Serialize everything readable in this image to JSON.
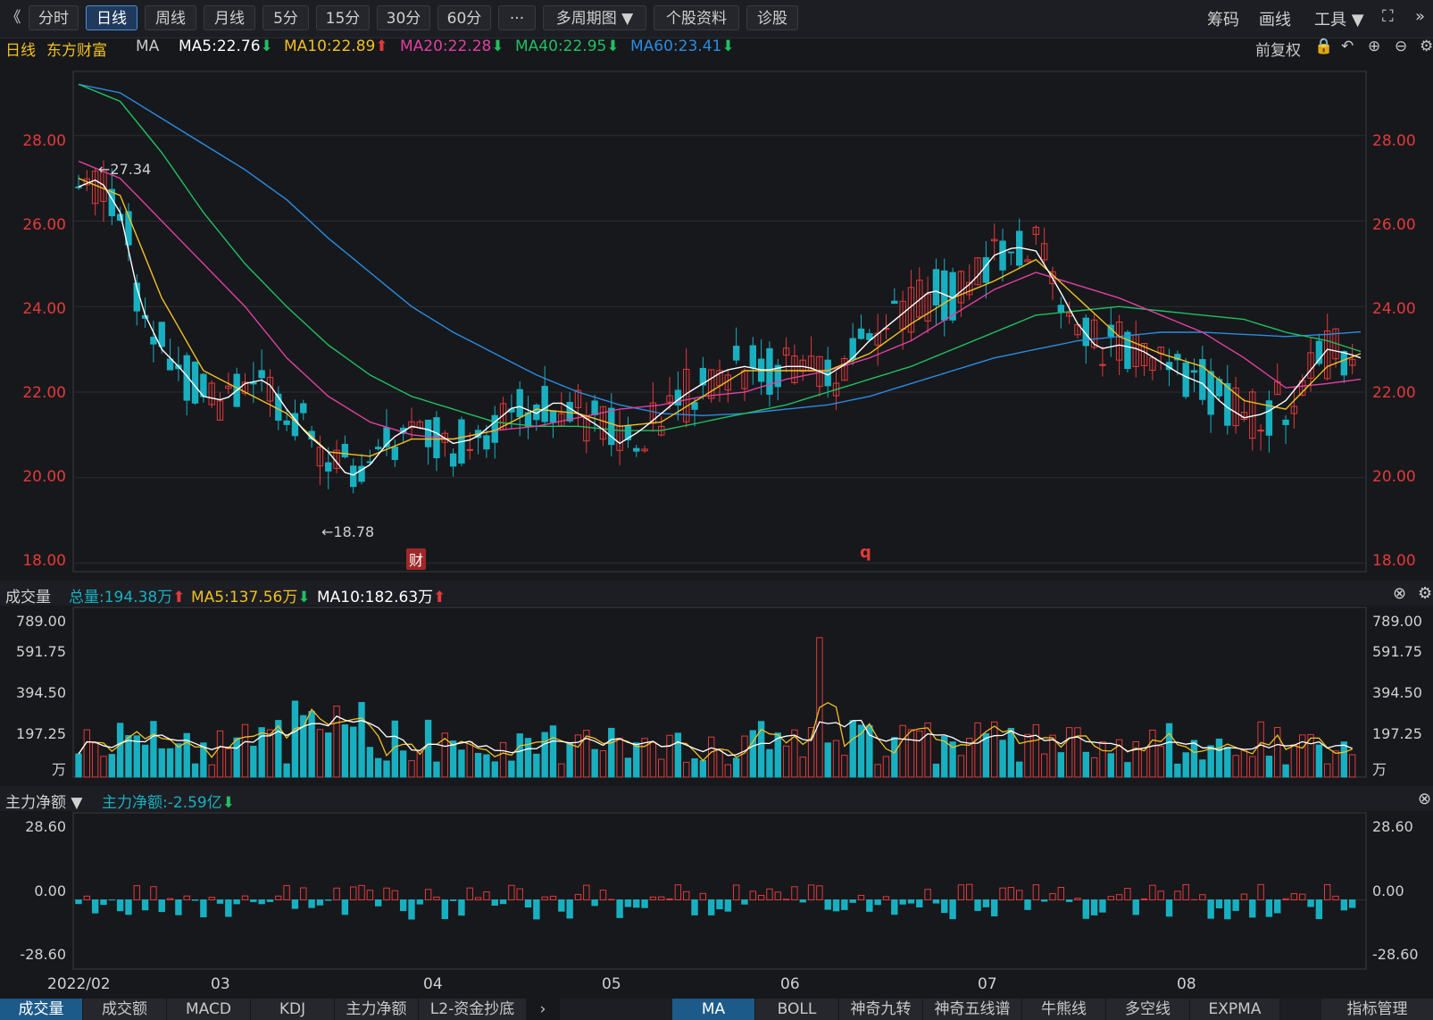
{
  "toolbar": {
    "back": "《",
    "tabs": [
      "分时",
      "日线",
      "周线",
      "月线",
      "5分",
      "15分",
      "30分",
      "60分",
      "···",
      "多周期图 ▼",
      "个股资料",
      "诊股"
    ],
    "active_tab": 1,
    "right": [
      "筹码",
      "画线",
      "工具 ▼"
    ],
    "fullscreen_icon": "expand-icon",
    "more_icon": "double-chevron-right-icon"
  },
  "ma_bar": {
    "period": "日线",
    "stock_name": "东方财富",
    "ma_label": "MA",
    "ma5": "MA5:22.76",
    "ma10": "MA10:22.89",
    "ma20": "MA20:22.28",
    "ma40": "MA40:22.95",
    "ma60": "MA60:23.41",
    "fq": "前复权",
    "colors": {
      "ma5": "#ffffff",
      "ma10": "#f0c020",
      "ma20": "#e040a0",
      "ma40": "#20c060",
      "ma60": "#2a8ce0"
    }
  },
  "price_axis": [
    "28.00",
    "26.00",
    "24.00",
    "22.00",
    "20.00",
    "18.00"
  ],
  "annotations": {
    "high": "←27.34",
    "low": "←18.78",
    "fin_badge": "财",
    "q_mark": "q"
  },
  "volume_panel": {
    "title": "成交量",
    "total": "总量:194.38万",
    "ma5": "MA5:137.56万",
    "ma10": "MA10:182.63万",
    "axis": [
      "789.00",
      "591.75",
      "394.50",
      "197.25",
      "万"
    ]
  },
  "flow_panel": {
    "title": "主力净额 ▼",
    "value": "主力净额:-2.59亿",
    "axis": [
      "28.60",
      "0.00",
      "-28.60"
    ]
  },
  "x_axis": [
    "2022/02",
    "03",
    "04",
    "05",
    "06",
    "07",
    "08"
  ],
  "bottom_left_tabs": [
    "成交量",
    "成交额",
    "MACD",
    "KDJ",
    "主力净额",
    "L2-资金抄底"
  ],
  "bottom_left_active": 0,
  "bottom_right_tabs": [
    "MA",
    "BOLL",
    "神奇九转",
    "神奇五线谱",
    "牛熊线",
    "多空线",
    "EXPMA",
    "指标管理"
  ],
  "bottom_right_active": 0,
  "chart_data": {
    "type": "candlestick",
    "ylim": [
      17.8,
      29.5
    ],
    "ma_lines": {
      "ma5": [
        [
          0,
          26.8
        ],
        [
          5,
          27.0
        ],
        [
          10,
          26.2
        ],
        [
          15,
          24.0
        ],
        [
          20,
          23.0
        ],
        [
          25,
          22.5
        ],
        [
          30,
          21.9
        ],
        [
          35,
          21.8
        ],
        [
          40,
          22.2
        ],
        [
          45,
          22.3
        ],
        [
          50,
          21.6
        ],
        [
          55,
          21.0
        ],
        [
          60,
          20.6
        ],
        [
          65,
          20.0
        ],
        [
          70,
          20.3
        ],
        [
          75,
          20.9
        ],
        [
          80,
          21.2
        ],
        [
          85,
          21.1
        ],
        [
          90,
          20.8
        ],
        [
          95,
          20.9
        ],
        [
          100,
          21.3
        ],
        [
          105,
          21.7
        ],
        [
          110,
          21.5
        ],
        [
          115,
          21.8
        ],
        [
          120,
          21.5
        ],
        [
          125,
          21.2
        ],
        [
          130,
          20.8
        ],
        [
          135,
          21.1
        ],
        [
          140,
          21.5
        ],
        [
          145,
          21.9
        ],
        [
          150,
          22.2
        ],
        [
          155,
          22.5
        ],
        [
          160,
          22.6
        ],
        [
          165,
          22.5
        ],
        [
          170,
          22.6
        ],
        [
          175,
          22.6
        ],
        [
          180,
          22.4
        ],
        [
          185,
          22.7
        ],
        [
          190,
          23.2
        ],
        [
          195,
          23.6
        ],
        [
          200,
          24.0
        ],
        [
          205,
          24.4
        ],
        [
          210,
          24.2
        ],
        [
          215,
          24.6
        ],
        [
          220,
          25.2
        ],
        [
          225,
          25.4
        ],
        [
          230,
          25.3
        ],
        [
          235,
          24.5
        ],
        [
          240,
          23.6
        ],
        [
          245,
          23.0
        ],
        [
          250,
          23.1
        ],
        [
          255,
          23.0
        ],
        [
          260,
          22.7
        ],
        [
          265,
          22.4
        ],
        [
          270,
          22.2
        ],
        [
          275,
          21.7
        ],
        [
          280,
          21.4
        ],
        [
          285,
          21.5
        ],
        [
          290,
          21.8
        ],
        [
          295,
          22.4
        ],
        [
          300,
          23.0
        ],
        [
          305,
          22.9
        ],
        [
          308,
          22.8
        ]
      ],
      "ma10": [
        [
          0,
          27.0
        ],
        [
          10,
          26.6
        ],
        [
          20,
          24.2
        ],
        [
          30,
          22.5
        ],
        [
          40,
          22.0
        ],
        [
          50,
          21.5
        ],
        [
          60,
          20.6
        ],
        [
          70,
          20.5
        ],
        [
          80,
          20.9
        ],
        [
          90,
          20.9
        ],
        [
          100,
          21.1
        ],
        [
          110,
          21.6
        ],
        [
          120,
          21.5
        ],
        [
          130,
          21.2
        ],
        [
          140,
          21.3
        ],
        [
          150,
          21.9
        ],
        [
          160,
          22.5
        ],
        [
          170,
          22.5
        ],
        [
          180,
          22.5
        ],
        [
          190,
          22.9
        ],
        [
          200,
          23.6
        ],
        [
          210,
          24.2
        ],
        [
          220,
          24.6
        ],
        [
          230,
          25.1
        ],
        [
          240,
          24.2
        ],
        [
          250,
          23.3
        ],
        [
          260,
          22.9
        ],
        [
          270,
          22.6
        ],
        [
          280,
          21.8
        ],
        [
          290,
          21.6
        ],
        [
          300,
          22.6
        ],
        [
          308,
          22.9
        ]
      ],
      "ma20": [
        [
          0,
          27.4
        ],
        [
          10,
          27.0
        ],
        [
          20,
          26.0
        ],
        [
          30,
          25.0
        ],
        [
          40,
          24.0
        ],
        [
          50,
          22.8
        ],
        [
          60,
          21.9
        ],
        [
          70,
          21.3
        ],
        [
          80,
          21.0
        ],
        [
          90,
          20.9
        ],
        [
          100,
          21.1
        ],
        [
          110,
          21.2
        ],
        [
          120,
          21.4
        ],
        [
          130,
          21.6
        ],
        [
          140,
          21.7
        ],
        [
          150,
          21.9
        ],
        [
          160,
          22.0
        ],
        [
          170,
          22.3
        ],
        [
          180,
          22.5
        ],
        [
          190,
          22.8
        ],
        [
          200,
          23.2
        ],
        [
          210,
          23.8
        ],
        [
          220,
          24.4
        ],
        [
          230,
          24.8
        ],
        [
          240,
          24.5
        ],
        [
          250,
          24.2
        ],
        [
          260,
          23.8
        ],
        [
          270,
          23.4
        ],
        [
          280,
          22.8
        ],
        [
          290,
          22.1
        ],
        [
          300,
          22.2
        ],
        [
          308,
          22.3
        ]
      ],
      "ma40": [
        [
          0,
          29.2
        ],
        [
          10,
          28.8
        ],
        [
          20,
          27.6
        ],
        [
          30,
          26.2
        ],
        [
          40,
          25.0
        ],
        [
          50,
          24.0
        ],
        [
          60,
          23.1
        ],
        [
          70,
          22.4
        ],
        [
          80,
          21.9
        ],
        [
          90,
          21.6
        ],
        [
          100,
          21.3
        ],
        [
          110,
          21.2
        ],
        [
          120,
          21.2
        ],
        [
          130,
          21.1
        ],
        [
          140,
          21.1
        ],
        [
          150,
          21.3
        ],
        [
          160,
          21.5
        ],
        [
          170,
          21.7
        ],
        [
          180,
          22.0
        ],
        [
          190,
          22.3
        ],
        [
          200,
          22.6
        ],
        [
          210,
          23.0
        ],
        [
          220,
          23.4
        ],
        [
          230,
          23.8
        ],
        [
          240,
          23.9
        ],
        [
          250,
          24.0
        ],
        [
          260,
          23.9
        ],
        [
          270,
          23.8
        ],
        [
          280,
          23.7
        ],
        [
          290,
          23.4
        ],
        [
          300,
          23.2
        ],
        [
          308,
          22.95
        ]
      ],
      "ma60": [
        [
          0,
          29.2
        ],
        [
          10,
          29.0
        ],
        [
          20,
          28.4
        ],
        [
          30,
          27.8
        ],
        [
          40,
          27.2
        ],
        [
          50,
          26.5
        ],
        [
          60,
          25.6
        ],
        [
          70,
          24.8
        ],
        [
          80,
          24.0
        ],
        [
          90,
          23.4
        ],
        [
          100,
          22.9
        ],
        [
          110,
          22.4
        ],
        [
          120,
          22.0
        ],
        [
          130,
          21.7
        ],
        [
          140,
          21.5
        ],
        [
          150,
          21.45
        ],
        [
          160,
          21.5
        ],
        [
          170,
          21.6
        ],
        [
          180,
          21.7
        ],
        [
          190,
          21.9
        ],
        [
          200,
          22.2
        ],
        [
          210,
          22.5
        ],
        [
          220,
          22.8
        ],
        [
          230,
          23.0
        ],
        [
          240,
          23.2
        ],
        [
          250,
          23.3
        ],
        [
          260,
          23.4
        ],
        [
          270,
          23.4
        ],
        [
          280,
          23.35
        ],
        [
          290,
          23.3
        ],
        [
          300,
          23.35
        ],
        [
          308,
          23.41
        ]
      ]
    },
    "candles_sample": "see script (daily OHLC, Feb–Aug 2022, high 27.34, low 18.78)",
    "volume_ylim": [
      0,
      789
    ],
    "flow_ylim": [
      -28.6,
      28.6
    ]
  }
}
